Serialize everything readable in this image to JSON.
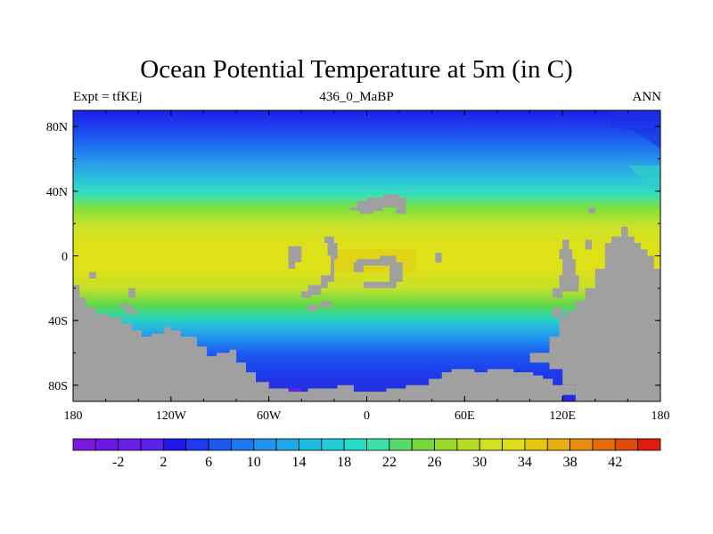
{
  "header": {
    "title": "Ocean Potential Temperature at 5m (in C)",
    "left_label": "Expt = tfKEj",
    "center_label": "436_0_MaBP",
    "right_label": "ANN"
  },
  "map": {
    "projection": "cylindrical-equidistant",
    "lon_range": [
      -180,
      180
    ],
    "lat_range": [
      -90,
      90
    ],
    "x_ticks": [
      {
        "value": -180,
        "label": "180"
      },
      {
        "value": -120,
        "label": "120W"
      },
      {
        "value": -60,
        "label": "60W"
      },
      {
        "value": 0,
        "label": "0"
      },
      {
        "value": 60,
        "label": "60E"
      },
      {
        "value": 120,
        "label": "120E"
      },
      {
        "value": 180,
        "label": "180"
      }
    ],
    "y_ticks": [
      {
        "value": 80,
        "label": "80N"
      },
      {
        "value": 40,
        "label": "40N"
      },
      {
        "value": 0,
        "label": "0"
      },
      {
        "value": -40,
        "label": "40S"
      },
      {
        "value": -80,
        "label": "80S"
      }
    ],
    "land_color": "#a0a0a0",
    "ocean_gradient": [
      {
        "lat": 90,
        "color": "#1c20e8"
      },
      {
        "lat": 78,
        "color": "#1c46f0"
      },
      {
        "lat": 66,
        "color": "#1e78f0"
      },
      {
        "lat": 56,
        "color": "#2aa0e6"
      },
      {
        "lat": 46,
        "color": "#2ac8d8"
      },
      {
        "lat": 38,
        "color": "#36e0b8"
      },
      {
        "lat": 30,
        "color": "#7ce040"
      },
      {
        "lat": 18,
        "color": "#cde22a"
      },
      {
        "lat": 6,
        "color": "#dee018"
      },
      {
        "lat": -8,
        "color": "#dee018"
      },
      {
        "lat": -20,
        "color": "#c6e02a"
      },
      {
        "lat": -30,
        "color": "#62d848"
      },
      {
        "lat": -38,
        "color": "#2ad6b0"
      },
      {
        "lat": -44,
        "color": "#2ab8e0"
      },
      {
        "lat": -52,
        "color": "#1e8cf0"
      },
      {
        "lat": -60,
        "color": "#1c5cf0"
      },
      {
        "lat": -72,
        "color": "#1c3cec"
      },
      {
        "lat": -90,
        "color": "#2a28d8"
      }
    ]
  },
  "colorbar": {
    "colors": [
      "#7b16e0",
      "#7016e4",
      "#6a1ee6",
      "#5c22ea",
      "#2016e8",
      "#1c3af0",
      "#1c58f0",
      "#1c78f0",
      "#1e96f0",
      "#1eaae6",
      "#20bce0",
      "#22ccd8",
      "#24dcc8",
      "#3ce0a8",
      "#56dc6c",
      "#74d83a",
      "#98d82a",
      "#b8dc24",
      "#d2e020",
      "#e0dc1a",
      "#e6c814",
      "#e8ae10",
      "#e88e0e",
      "#e46a0c",
      "#e04a0a",
      "#e01c0c"
    ],
    "labels": [
      "-2",
      "2",
      "6",
      "10",
      "14",
      "18",
      "22",
      "26",
      "30",
      "34",
      "38",
      "42"
    ],
    "label_every": 2,
    "label_start_index": 2
  }
}
